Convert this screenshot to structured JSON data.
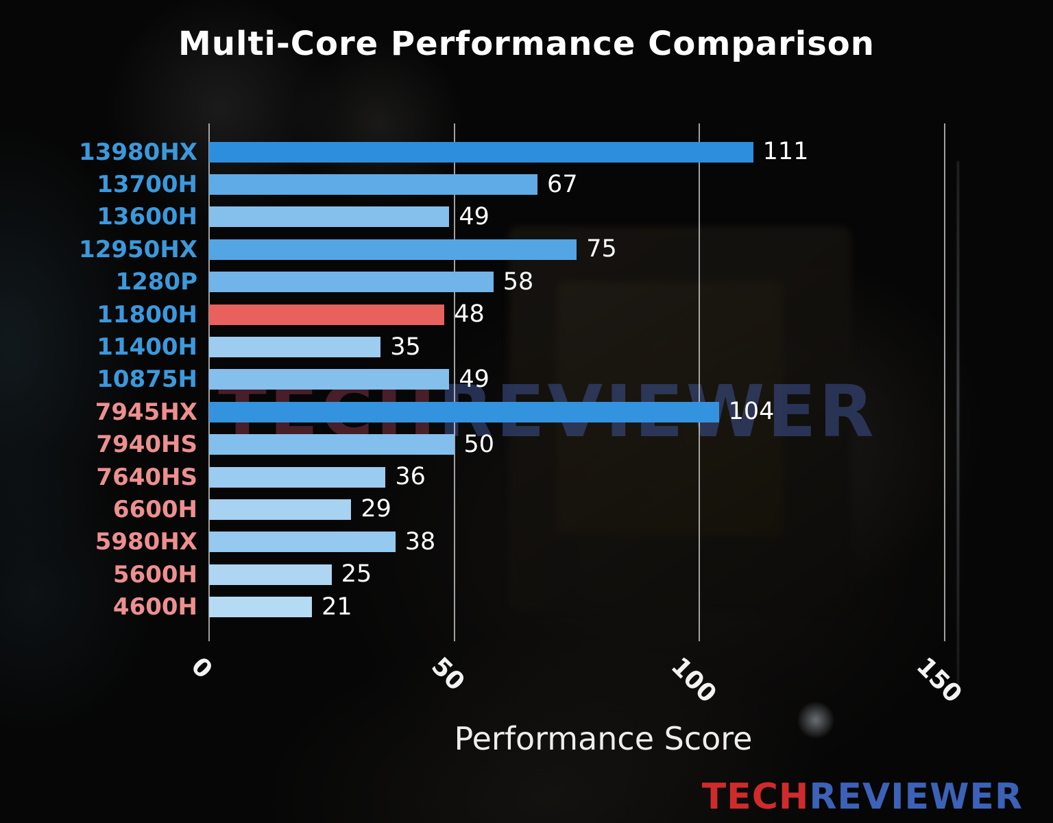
{
  "title": "Multi-Core Performance Comparison",
  "watermark": {
    "tech": "TECH",
    "reviewer": "REVIEWER"
  },
  "brand_logo": {
    "tech": "TECH",
    "reviewer": "REVIEWER"
  },
  "chart_data": {
    "type": "bar",
    "orientation": "horizontal",
    "title": "Multi-Core Performance Comparison",
    "xlabel": "Performance Score",
    "xlim": [
      0,
      160
    ],
    "xticks": [
      0,
      50,
      100,
      150
    ],
    "grid": true,
    "legend": false,
    "categories": [
      "13980HX",
      "13700H",
      "13600H",
      "12950HX",
      "1280P",
      "11800H",
      "11400H",
      "10875H",
      "7945HX",
      "7940HS",
      "7640HS",
      "6600H",
      "5980HX",
      "5600H",
      "4600H"
    ],
    "values": [
      111,
      67,
      49,
      75,
      58,
      48,
      35,
      49,
      104,
      50,
      36,
      29,
      38,
      25,
      21
    ],
    "highlighted_category": "11800H",
    "colors": {
      "intel_label": "#3b99dc",
      "amd_label": "#ee8f8f",
      "highlight_bar": "#e8615c",
      "value_text": "#ffffff",
      "grid_line": "#dedede"
    },
    "bars": [
      {
        "label": "13980HX",
        "value": 111,
        "bar_color": "#2e8ede",
        "label_color": "#3b99dc"
      },
      {
        "label": "13700H",
        "value": 67,
        "bar_color": "#5fabe7",
        "label_color": "#3b99dc"
      },
      {
        "label": "13600H",
        "value": 49,
        "bar_color": "#85c0ed",
        "label_color": "#3b99dc"
      },
      {
        "label": "12950HX",
        "value": 75,
        "bar_color": "#54a5e4",
        "label_color": "#3b99dc"
      },
      {
        "label": "1280P",
        "value": 58,
        "bar_color": "#70b4e9",
        "label_color": "#3b99dc"
      },
      {
        "label": "11800H",
        "value": 48,
        "bar_color": "#e8615c",
        "label_color": "#3b99dc"
      },
      {
        "label": "11400H",
        "value": 35,
        "bar_color": "#9cccf0",
        "label_color": "#3b99dc"
      },
      {
        "label": "10875H",
        "value": 49,
        "bar_color": "#85c0ed",
        "label_color": "#3b99dc"
      },
      {
        "label": "7945HX",
        "value": 104,
        "bar_color": "#3493df",
        "label_color": "#ee8f8f"
      },
      {
        "label": "7940HS",
        "value": 50,
        "bar_color": "#83bfec",
        "label_color": "#ee8f8f"
      },
      {
        "label": "7640HS",
        "value": 36,
        "bar_color": "#9acbf0",
        "label_color": "#ee8f8f"
      },
      {
        "label": "6600H",
        "value": 29,
        "bar_color": "#a7d2f2",
        "label_color": "#ee8f8f"
      },
      {
        "label": "5980HX",
        "value": 38,
        "bar_color": "#96c9ef",
        "label_color": "#ee8f8f"
      },
      {
        "label": "5600H",
        "value": 25,
        "bar_color": "#aed6f3",
        "label_color": "#ee8f8f"
      },
      {
        "label": "4600H",
        "value": 21,
        "bar_color": "#b5daf4",
        "label_color": "#ee8f8f"
      }
    ]
  }
}
